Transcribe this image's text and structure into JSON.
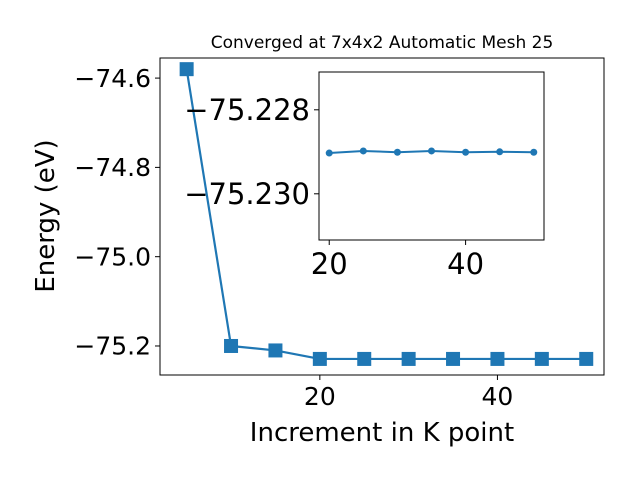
{
  "chart_data": [
    {
      "type": "line",
      "title": "Converged at 7x4x2 Automatic Mesh 25",
      "xlabel": "Increment in K point",
      "ylabel": "Energy (eV)",
      "xlim": [
        2,
        52
      ],
      "ylim": [
        -75.265,
        -74.555
      ],
      "xticks": [
        20,
        40
      ],
      "xtick_labels": [
        "20",
        "40"
      ],
      "yticks": [
        -74.6,
        -74.8,
        -75.0,
        -75.2
      ],
      "ytick_labels": [
        "−74.6",
        "−74.8",
        "−75.0",
        "−75.2"
      ],
      "grid": false,
      "series": [
        {
          "color": "#1f77b4",
          "marker": "square",
          "x": [
            5,
            10,
            15,
            20,
            25,
            30,
            35,
            40,
            45,
            50
          ],
          "y": [
            -74.58,
            -75.2,
            -75.21,
            -75.229,
            -75.229,
            -75.229,
            -75.229,
            -75.229,
            -75.229,
            -75.229
          ]
        }
      ]
    },
    {
      "type": "line",
      "title": "",
      "xlabel": "",
      "ylabel": "",
      "xlim": [
        18.5,
        51.5
      ],
      "ylim": [
        -75.2311,
        -75.2271
      ],
      "xticks": [
        20,
        40
      ],
      "xtick_labels": [
        "20",
        "40"
      ],
      "yticks": [
        -75.23,
        -75.228
      ],
      "ytick_labels": [
        "−75.230",
        "−75.228"
      ],
      "grid": false,
      "series": [
        {
          "color": "#1f77b4",
          "marker": "circle",
          "x": [
            20,
            25,
            30,
            35,
            40,
            45,
            50
          ],
          "y": [
            -75.22903,
            -75.22898,
            -75.22901,
            -75.22898,
            -75.22901,
            -75.229,
            -75.22901
          ]
        }
      ]
    }
  ]
}
